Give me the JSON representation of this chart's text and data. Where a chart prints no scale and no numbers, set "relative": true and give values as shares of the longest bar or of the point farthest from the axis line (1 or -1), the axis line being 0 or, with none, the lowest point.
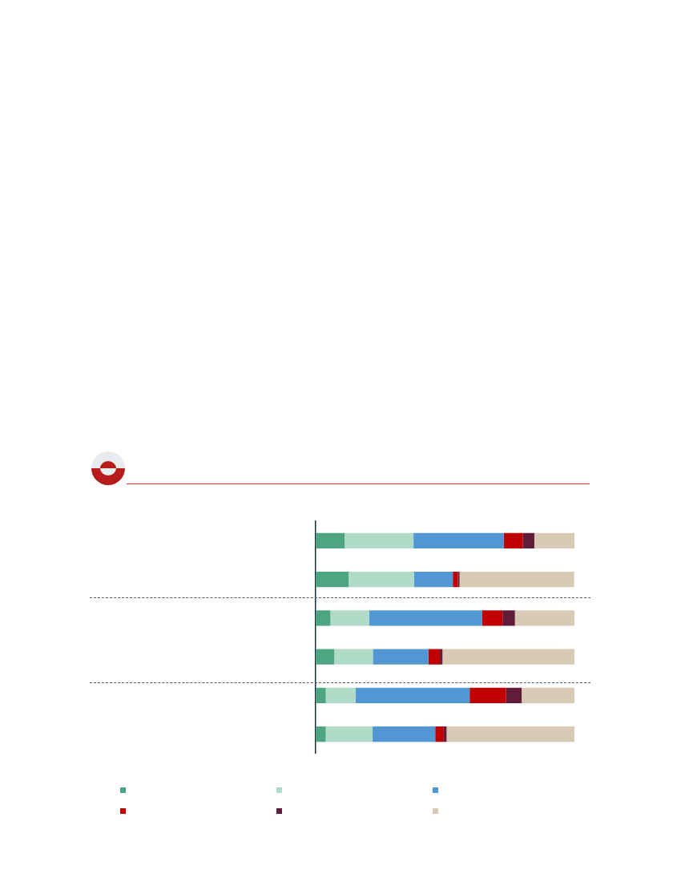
{
  "chart_data": {
    "type": "bar",
    "orientation": "horizontal",
    "stacked": true,
    "relative": true,
    "categories": [
      null,
      null,
      null,
      null,
      null,
      null
    ],
    "series": [
      {
        "color": "#4ea584",
        "values": [
          0.112,
          0.127,
          0.057,
          0.072,
          0.039,
          0.039
        ]
      },
      {
        "color": "#b0dbc9",
        "values": [
          0.266,
          0.253,
          0.15,
          0.149,
          0.115,
          0.181
        ]
      },
      {
        "color": "#5097d3",
        "values": [
          0.349,
          0.15,
          0.436,
          0.215,
          0.441,
          0.242
        ]
      },
      {
        "color": "#c00000",
        "values": [
          0.074,
          0.02,
          0.079,
          0.044,
          0.141,
          0.033
        ]
      },
      {
        "color": "#611c3a",
        "values": [
          0.044,
          0.006,
          0.048,
          0.01,
          0.06,
          0.011
        ]
      },
      {
        "color": "#d9cab5",
        "values": [
          0.155,
          0.443,
          0.23,
          0.51,
          0.204,
          0.494
        ]
      }
    ]
  }
}
